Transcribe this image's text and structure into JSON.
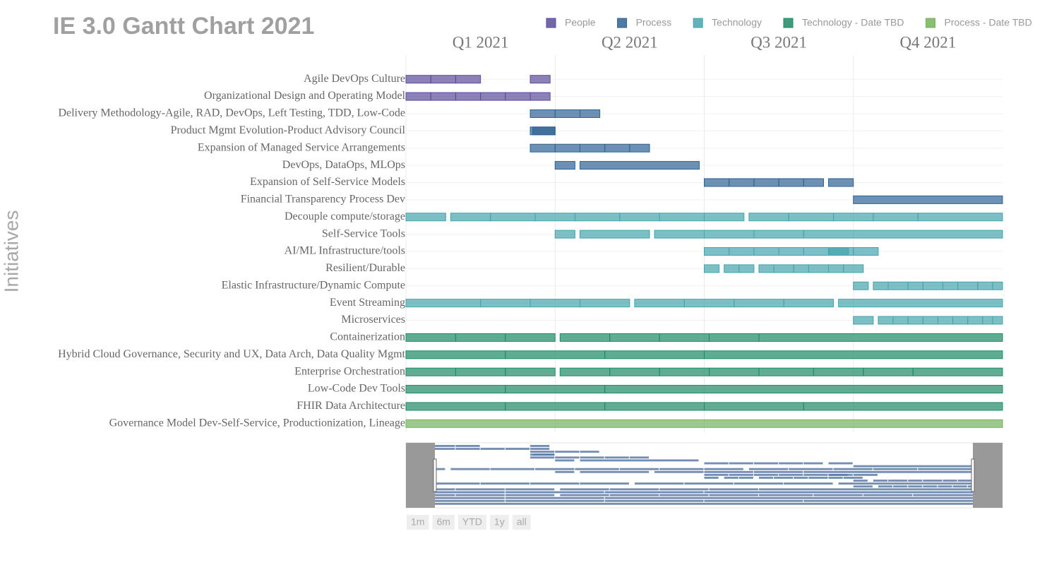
{
  "chart_data": {
    "type": "gantt",
    "title": "IE 3.0 Gantt Chart 2021",
    "y_label": "Initiatives",
    "xlim": [
      0,
      12
    ],
    "xticks": [
      {
        "value": 0,
        "label": "Q1 2021"
      },
      {
        "value": 3,
        "label": "Q2 2021"
      },
      {
        "value": 6,
        "label": "Q3 2021"
      },
      {
        "value": 9,
        "label": "Q4 2021"
      }
    ],
    "grid": true,
    "legend": "top-right",
    "series": [
      {
        "name": "People",
        "color": "#5b4b9b"
      },
      {
        "name": "Process",
        "color": "#2d6394"
      },
      {
        "name": "Technology",
        "color": "#45a4ad"
      },
      {
        "name": "Technology - Date TBD",
        "color": "#1d8a66"
      },
      {
        "name": "Process - Date TBD",
        "color": "#74b35a"
      }
    ],
    "tasks": [
      {
        "name": "Agile DevOps Culture",
        "series": 0,
        "segments": [
          [
            0,
            0.5
          ],
          [
            0.5,
            1
          ],
          [
            1,
            1.5
          ],
          [
            2.5,
            2.9
          ]
        ]
      },
      {
        "name": "Organizational Design and Operating Model",
        "series": 0,
        "segments": [
          [
            0,
            0.5
          ],
          [
            0.5,
            1
          ],
          [
            1,
            1.5
          ],
          [
            1.5,
            2
          ],
          [
            2,
            2.5
          ],
          [
            2.5,
            2.9
          ]
        ]
      },
      {
        "name": "Delivery Methodology-Agile, RAD, DevOps, Left Testing, TDD, Low-Code",
        "series": 1,
        "segments": [
          [
            2.5,
            3
          ],
          [
            3,
            3.5
          ],
          [
            3.5,
            3.9
          ]
        ]
      },
      {
        "name": "Product Mgmt Evolution-Product Advisory Council",
        "series": 1,
        "segments": [
          [
            2.5,
            3
          ],
          [
            2.55,
            3
          ]
        ]
      },
      {
        "name": "Expansion of Managed Service Arrangements",
        "series": 1,
        "segments": [
          [
            2.5,
            3
          ],
          [
            3,
            3.5
          ],
          [
            3.5,
            4
          ],
          [
            4,
            4.5
          ],
          [
            4.5,
            4.9
          ]
        ]
      },
      {
        "name": "DevOps, DataOps, MLOps",
        "series": 1,
        "segments": [
          [
            3,
            3.4
          ],
          [
            3.5,
            5.9
          ]
        ]
      },
      {
        "name": "Expansion of Self-Service Models",
        "series": 1,
        "segments": [
          [
            6,
            6.5
          ],
          [
            6.5,
            7
          ],
          [
            7,
            7.5
          ],
          [
            7.5,
            8
          ],
          [
            8,
            8.4
          ],
          [
            8.5,
            9
          ]
        ]
      },
      {
        "name": "Financial Transparency Process Dev",
        "series": 1,
        "segments": [
          [
            9,
            12
          ]
        ]
      },
      {
        "name": "Decouple compute/storage",
        "series": 2,
        "segments": [
          [
            0,
            0.8
          ],
          [
            0.9,
            1.7
          ],
          [
            1.7,
            2.6
          ],
          [
            2.6,
            3.4
          ],
          [
            3.4,
            4.3
          ],
          [
            4.3,
            5.1
          ],
          [
            5.1,
            6
          ],
          [
            6,
            6.8
          ],
          [
            6.9,
            7.7
          ],
          [
            7.7,
            8.6
          ],
          [
            8.6,
            9.4
          ],
          [
            9.4,
            10.3
          ],
          [
            10.3,
            12
          ]
        ]
      },
      {
        "name": "Self-Service Tools",
        "series": 2,
        "segments": [
          [
            3,
            3.4
          ],
          [
            3.5,
            4.9
          ],
          [
            5,
            6
          ],
          [
            6,
            7
          ],
          [
            7,
            8
          ],
          [
            8,
            12
          ]
        ]
      },
      {
        "name": "AI/ML Infrastructure/tools",
        "series": 2,
        "segments": [
          [
            6,
            6.5
          ],
          [
            6.5,
            7
          ],
          [
            7,
            7.5
          ],
          [
            7.5,
            8
          ],
          [
            8,
            8.5
          ],
          [
            8.5,
            9
          ],
          [
            9,
            9.5
          ],
          [
            8.5,
            8.9
          ]
        ]
      },
      {
        "name": "Resilient/Durable",
        "series": 2,
        "segments": [
          [
            6,
            6.3
          ],
          [
            6.4,
            6.7
          ],
          [
            6.7,
            7
          ],
          [
            7.1,
            7.4
          ],
          [
            7.4,
            7.8
          ],
          [
            7.8,
            8.1
          ],
          [
            8.1,
            8.5
          ],
          [
            8.5,
            8.8
          ],
          [
            8.8,
            9.2
          ]
        ]
      },
      {
        "name": "Elastic Infrastructure/Dynamic Compute",
        "series": 2,
        "segments": [
          [
            9,
            9.3
          ],
          [
            9.4,
            9.7
          ],
          [
            9.7,
            10.1
          ],
          [
            10.1,
            10.4
          ],
          [
            10.4,
            10.8
          ],
          [
            10.8,
            11.1
          ],
          [
            11.1,
            11.5
          ],
          [
            11.5,
            11.8
          ],
          [
            11.8,
            12
          ]
        ]
      },
      {
        "name": "Event Streaming",
        "series": 2,
        "segments": [
          [
            0,
            1.5
          ],
          [
            1.5,
            2.5
          ],
          [
            2.5,
            3.5
          ],
          [
            3.5,
            4.5
          ],
          [
            4.6,
            5.6
          ],
          [
            5.6,
            6.6
          ],
          [
            6.6,
            7.6
          ],
          [
            7.6,
            8.6
          ],
          [
            8.7,
            12
          ]
        ]
      },
      {
        "name": "Microservices",
        "series": 2,
        "segments": [
          [
            9,
            9.4
          ],
          [
            9.5,
            9.8
          ],
          [
            9.8,
            10.1
          ],
          [
            10.1,
            10.4
          ],
          [
            10.4,
            10.7
          ],
          [
            10.7,
            11
          ],
          [
            11,
            11.3
          ],
          [
            11.3,
            11.6
          ],
          [
            11.6,
            11.8
          ],
          [
            11.8,
            12
          ]
        ]
      },
      {
        "name": "Containerization",
        "series": 3,
        "segments": [
          [
            0,
            1
          ],
          [
            1,
            2
          ],
          [
            2,
            3
          ],
          [
            3.1,
            4.1
          ],
          [
            4.1,
            5.1
          ],
          [
            5.1,
            6.1
          ],
          [
            6.1,
            7.1
          ],
          [
            7.1,
            12
          ]
        ]
      },
      {
        "name": "Hybrid Cloud Governance, Security and UX, Data Arch, Data Quality Mgmt",
        "series": 3,
        "segments": [
          [
            0,
            2
          ],
          [
            2,
            4
          ],
          [
            4,
            6
          ],
          [
            6,
            12
          ]
        ]
      },
      {
        "name": "Enterprise Orchestration",
        "series": 3,
        "segments": [
          [
            0,
            1
          ],
          [
            1,
            2
          ],
          [
            2,
            3
          ],
          [
            3.1,
            4.1
          ],
          [
            4.1,
            5.1
          ],
          [
            5.1,
            6.1
          ],
          [
            6.1,
            7.1
          ],
          [
            7.1,
            8.2
          ],
          [
            8.2,
            9.2
          ],
          [
            9.2,
            10.2
          ],
          [
            10.2,
            12
          ]
        ]
      },
      {
        "name": "Low-Code Dev Tools",
        "series": 3,
        "segments": [
          [
            0,
            2
          ],
          [
            2,
            4
          ],
          [
            4,
            12
          ]
        ]
      },
      {
        "name": "FHIR Data Architecture",
        "series": 3,
        "segments": [
          [
            0,
            2
          ],
          [
            2,
            4
          ],
          [
            4,
            6
          ],
          [
            6,
            8
          ],
          [
            8,
            12
          ]
        ]
      },
      {
        "name": "Governance Model Dev-Self-Service, Productionization, Lineage",
        "series": 4,
        "segments": [
          [
            0,
            12
          ]
        ]
      }
    ],
    "range_buttons": [
      "1m",
      "6m",
      "YTD",
      "1y",
      "all"
    ]
  }
}
